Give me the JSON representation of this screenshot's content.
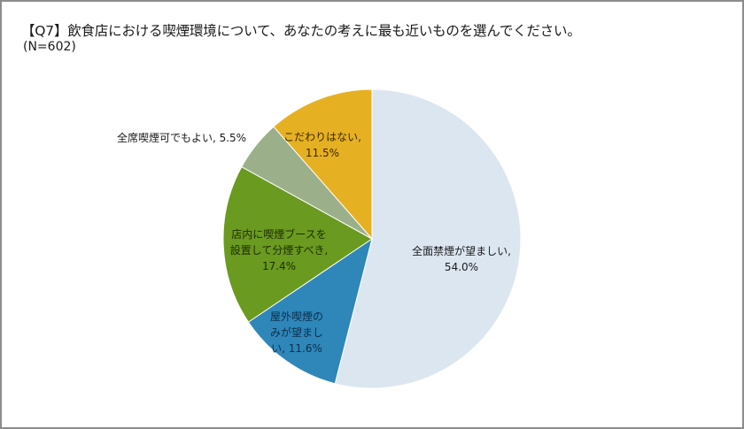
{
  "title": "【Q7】飲食店における喫煙環境について、あなたの考えに最も近いものを選んでください。",
  "subtitle": "(N=602)",
  "labels": {
    "s0": [
      "全面禁煙が望ましい,",
      "54.0%"
    ],
    "s1": [
      "屋外喫煙の",
      "みが望まし",
      "い, 11.6%"
    ],
    "s2": [
      "店内に喫煙ブースを",
      "設置して分煙すべき,",
      "17.4%"
    ],
    "s3": [
      "全席喫煙可でもよい, 5.5%"
    ],
    "s4": [
      "こだわりはない,",
      "11.5%"
    ]
  },
  "chart_data": {
    "type": "pie",
    "title": "【Q7】飲食店における喫煙環境について、あなたの考えに最も近いものを選んでください。",
    "subtitle": "(N=602)",
    "start_angle": "12 o'clock, clockwise",
    "categories": [
      "全面禁煙が望ましい",
      "屋外喫煙のみが望ましい",
      "店内に喫煙ブースを設置して分煙すべき",
      "全席喫煙可でもよい",
      "こだわりはない"
    ],
    "values": [
      54.0,
      11.6,
      17.4,
      5.5,
      11.5
    ],
    "unit": "%",
    "colors": [
      "#dce6f1",
      "#2e86b9",
      "#6a9a1f",
      "#9bb08a",
      "#e6b023"
    ],
    "legend": "none (data labels on slices)"
  }
}
